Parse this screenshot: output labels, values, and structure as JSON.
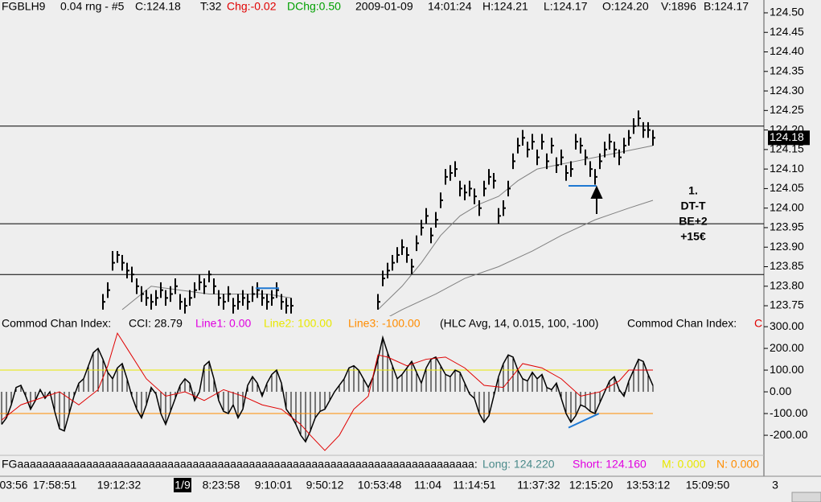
{
  "header": [
    {
      "text": "FGBLH9",
      "color": "#000000"
    },
    {
      "text": "0.04 rng - #5",
      "color": "#000000"
    },
    {
      "text": "C:124.18",
      "color": "#000000"
    },
    {
      "text": "T:32",
      "color": "#000000"
    },
    {
      "text": "Chg:-0.02",
      "color": "#e00000"
    },
    {
      "text": "DChg:0.50",
      "color": "#00a000"
    },
    {
      "text": "2009-01-09",
      "color": "#000000"
    },
    {
      "text": "14:01:24",
      "color": "#000000"
    },
    {
      "text": "H:124.21",
      "color": "#000000"
    },
    {
      "text": "L:124.17",
      "color": "#000000"
    },
    {
      "text": "O:124.20",
      "color": "#000000"
    },
    {
      "text": "V:1896",
      "color": "#000000"
    },
    {
      "text": "B:124.17",
      "color": "#000000"
    }
  ],
  "chart_data": [
    {
      "type": "hlc",
      "color": "#000000",
      "high": [
        null,
        null,
        null,
        null,
        null,
        null,
        null,
        null,
        null,
        null,
        null,
        null,
        null,
        null,
        null,
        null,
        null,
        null,
        null,
        null,
        null,
        123.78,
        123.81,
        123.89,
        123.89,
        123.88,
        123.86,
        123.85,
        123.82,
        123.8,
        123.79,
        123.78,
        123.79,
        123.81,
        123.79,
        123.8,
        123.82,
        123.78,
        123.77,
        123.79,
        123.81,
        123.83,
        123.82,
        123.84,
        123.82,
        123.79,
        123.78,
        123.8,
        123.77,
        123.78,
        123.79,
        123.78,
        123.8,
        123.81,
        123.79,
        123.78,
        123.79,
        123.81,
        123.78,
        123.77,
        123.77,
        null,
        null,
        null,
        null,
        null,
        null,
        null,
        null,
        null,
        null,
        null,
        null,
        null,
        null,
        null,
        null,
        null,
        123.78,
        123.84,
        123.86,
        123.88,
        123.9,
        123.92,
        123.9,
        123.87,
        123.93,
        123.97,
        124.0,
        123.95,
        123.99,
        124.04,
        124.1,
        124.11,
        124.12,
        124.07,
        124.06,
        124.07,
        124.05,
        124.02,
        124.07,
        124.1,
        124.09,
        124.0,
        124.02,
        124.07,
        124.14,
        124.18,
        124.2,
        124.17,
        124.19,
        124.15,
        124.19,
        124.14,
        124.18,
        124.13,
        124.15,
        124.11,
        124.12,
        124.19,
        124.18,
        124.15,
        124.12,
        124.1,
        124.14,
        124.17,
        124.19,
        124.17,
        124.15,
        124.18,
        124.2,
        124.23,
        124.25,
        124.22,
        124.22,
        124.2
      ],
      "low": [
        null,
        null,
        null,
        null,
        null,
        null,
        null,
        null,
        null,
        null,
        null,
        null,
        null,
        null,
        null,
        null,
        null,
        null,
        null,
        null,
        null,
        123.74,
        123.77,
        123.84,
        123.86,
        123.84,
        123.82,
        123.81,
        123.78,
        123.76,
        123.75,
        123.74,
        123.75,
        123.77,
        123.75,
        123.76,
        123.78,
        123.74,
        123.73,
        123.75,
        123.77,
        123.79,
        123.78,
        123.81,
        123.78,
        123.75,
        123.74,
        123.76,
        123.73,
        123.74,
        123.75,
        123.74,
        123.76,
        123.77,
        123.75,
        123.74,
        123.75,
        123.77,
        123.74,
        123.73,
        123.73,
        null,
        null,
        null,
        null,
        null,
        null,
        null,
        null,
        null,
        null,
        null,
        null,
        null,
        null,
        null,
        null,
        null,
        123.74,
        123.8,
        123.82,
        123.84,
        123.86,
        123.88,
        123.86,
        123.83,
        123.89,
        123.93,
        123.96,
        123.91,
        123.95,
        124.0,
        124.06,
        124.07,
        124.08,
        124.03,
        124.02,
        124.03,
        124.01,
        123.98,
        124.03,
        124.06,
        124.05,
        123.96,
        123.98,
        124.03,
        124.1,
        124.14,
        124.16,
        124.13,
        124.15,
        124.11,
        124.15,
        124.1,
        124.14,
        124.09,
        124.11,
        124.07,
        124.08,
        124.15,
        124.14,
        124.11,
        124.08,
        124.06,
        124.1,
        124.13,
        124.15,
        124.13,
        124.11,
        124.14,
        124.16,
        124.19,
        124.21,
        124.18,
        124.18,
        124.16
      ],
      "close": [
        null,
        null,
        null,
        null,
        null,
        null,
        null,
        null,
        null,
        null,
        null,
        null,
        null,
        null,
        null,
        null,
        null,
        null,
        null,
        null,
        null,
        123.76,
        123.79,
        123.86,
        123.88,
        123.86,
        123.84,
        123.83,
        123.8,
        123.78,
        123.77,
        123.76,
        123.77,
        123.79,
        123.77,
        123.78,
        123.8,
        123.76,
        123.75,
        123.77,
        123.79,
        123.81,
        123.8,
        123.83,
        123.8,
        123.77,
        123.76,
        123.78,
        123.75,
        123.76,
        123.77,
        123.76,
        123.78,
        123.79,
        123.77,
        123.76,
        123.77,
        123.79,
        123.76,
        123.75,
        123.75,
        null,
        null,
        null,
        null,
        null,
        null,
        null,
        null,
        null,
        null,
        null,
        null,
        null,
        null,
        null,
        null,
        null,
        123.76,
        123.82,
        123.84,
        123.86,
        123.88,
        123.9,
        123.88,
        123.85,
        123.91,
        123.95,
        123.98,
        123.93,
        123.97,
        124.02,
        124.08,
        124.09,
        124.1,
        124.05,
        124.04,
        124.05,
        124.03,
        124.0,
        124.05,
        124.08,
        124.07,
        123.98,
        124.0,
        124.05,
        124.12,
        124.16,
        124.18,
        124.15,
        124.17,
        124.13,
        124.17,
        124.12,
        124.16,
        124.11,
        124.13,
        124.09,
        124.1,
        124.17,
        124.16,
        124.13,
        124.1,
        124.08,
        124.12,
        124.15,
        124.17,
        124.15,
        124.13,
        124.16,
        124.18,
        124.21,
        124.23,
        124.2,
        124.2,
        124.18
      ],
      "moving_averages": [
        {
          "color": "#808080",
          "x": [
            25,
            31,
            37,
            43,
            49,
            55,
            60,
            69,
            78,
            83,
            87,
            91,
            95,
            99,
            103,
            107,
            111,
            115,
            119,
            123,
            127,
            131,
            135
          ],
          "values": [
            123.74,
            123.8,
            123.79,
            123.78,
            123.78,
            123.78,
            123.77,
            null,
            123.74,
            123.8,
            123.86,
            123.93,
            123.98,
            124.01,
            124.03,
            124.07,
            124.1,
            124.11,
            124.12,
            124.13,
            124.14,
            124.15,
            124.16
          ]
        },
        {
          "color": "#808080",
          "x": [
            80,
            83,
            90,
            96,
            103,
            110,
            116,
            123,
            130,
            135
          ],
          "values": [
            123.72,
            123.74,
            123.78,
            123.82,
            123.85,
            123.89,
            123.93,
            123.97,
            124.0,
            124.02
          ]
        }
      ],
      "hlines": [
        124.21,
        123.96,
        123.83
      ],
      "drawings": [
        {
          "color": "#1e78d2",
          "x": [
            52.7,
            57.5
          ],
          "values": [
            123.795,
            123.795
          ]
        },
        {
          "color": "#1e78d2",
          "x": [
            117.5,
            123.3
          ],
          "values": [
            124.057,
            124.057
          ]
        }
      ],
      "last_price": {
        "value": 124.18,
        "label": "124.18"
      },
      "annotation": [
        "1.",
        "DT-T",
        "BE+2",
        "+15€"
      ],
      "ylim": [
        123.74,
        124.53
      ],
      "yticks": [
        {
          "value": 124.5,
          "label": "124.50"
        },
        {
          "value": 124.45,
          "label": "124.45"
        },
        {
          "value": 124.4,
          "label": "124.40"
        },
        {
          "value": 124.35,
          "label": "124.35"
        },
        {
          "value": 124.3,
          "label": "124.30"
        },
        {
          "value": 124.25,
          "label": "124.25"
        },
        {
          "value": 124.2,
          "label": "124.20"
        },
        {
          "value": 124.15,
          "label": "124.15"
        },
        {
          "value": 124.1,
          "label": "124.10"
        },
        {
          "value": 124.05,
          "label": "124.05"
        },
        {
          "value": 124.0,
          "label": "124.00"
        },
        {
          "value": 123.95,
          "label": "123.95"
        },
        {
          "value": 123.9,
          "label": "123.90"
        },
        {
          "value": 123.85,
          "label": "123.85"
        },
        {
          "value": 123.8,
          "label": "123.80"
        },
        {
          "value": 123.75,
          "label": "123.75"
        }
      ]
    },
    {
      "type": "cci",
      "legend": [
        {
          "text": "Commod Chan Index:",
          "color": "#000000"
        },
        {
          "text": "CCI: 28.79",
          "color": "#000000"
        },
        {
          "text": "Line1: 0.00",
          "color": "#e000e0"
        },
        {
          "text": "Line2: 100.00",
          "color": "#e8e800"
        },
        {
          "text": "Line3: -100.00",
          "color": "#ff8c00"
        },
        {
          "text": "(HLC Avg, 14, 0.015, 100, -100)",
          "color": "#000000"
        },
        {
          "text": "Commod Chan Index:",
          "color": "#000000"
        },
        {
          "text": "C",
          "color": "#e00000"
        }
      ],
      "color": "#000000",
      "values": [
        -150,
        -120,
        -60,
        20,
        30,
        -20,
        -80,
        -40,
        10,
        -30,
        0,
        -90,
        -170,
        -180,
        -100,
        -20,
        40,
        60,
        120,
        180,
        200,
        150,
        90,
        60,
        110,
        130,
        60,
        -20,
        -80,
        -120,
        -60,
        20,
        -10,
        -100,
        -150,
        -90,
        -30,
        30,
        60,
        40,
        -40,
        0,
        120,
        140,
        60,
        -40,
        -90,
        -100,
        -60,
        -120,
        -80,
        30,
        70,
        40,
        -20,
        40,
        80,
        100,
        40,
        -80,
        -110,
        -150,
        -200,
        -230,
        -180,
        -120,
        -90,
        -80,
        -40,
        0,
        30,
        60,
        110,
        120,
        100,
        60,
        20,
        70,
        150,
        250,
        180,
        120,
        60,
        80,
        110,
        140,
        90,
        40,
        110,
        150,
        160,
        120,
        80,
        70,
        100,
        90,
        40,
        -10,
        -30,
        -100,
        -140,
        -110,
        -20,
        70,
        130,
        170,
        160,
        100,
        60,
        50,
        90,
        60,
        80,
        20,
        10,
        40,
        -30,
        -100,
        -140,
        -110,
        -60,
        -70,
        -90,
        -100,
        -50,
        0,
        50,
        70,
        10,
        -20,
        50,
        100,
        150,
        140,
        80,
        28.79
      ],
      "signal": {
        "color": "#e00000",
        "x": [
          0,
          4,
          8,
          12,
          16,
          20,
          22,
          24,
          26,
          30,
          34,
          38,
          42,
          46,
          50,
          54,
          58,
          62,
          64,
          67,
          70,
          73,
          76,
          78,
          80,
          84,
          88,
          92,
          96,
          100,
          104,
          108,
          112,
          116,
          120,
          124,
          128,
          130,
          133,
          135
        ],
        "values": [
          -130,
          -60,
          -30,
          0,
          -60,
          10,
          120,
          270,
          200,
          60,
          -20,
          0,
          -40,
          10,
          -20,
          -60,
          -80,
          -150,
          -200,
          -270,
          -200,
          -80,
          -20,
          170,
          160,
          120,
          150,
          160,
          110,
          30,
          20,
          130,
          110,
          60,
          -20,
          0,
          50,
          100,
          100,
          100
        ]
      },
      "levels": [
        {
          "value": 100,
          "color": "#e8e800"
        },
        {
          "value": -100,
          "color": "#ff8c00"
        }
      ],
      "drawings": [
        {
          "color": "#1e78d2",
          "x": [
            117.5,
            123.8
          ],
          "values": [
            -165,
            -100
          ]
        }
      ],
      "ylim": [
        -285,
        341
      ],
      "yticks": [
        {
          "value": 300,
          "label": "300.00"
        },
        {
          "value": 200,
          "label": "200.00"
        },
        {
          "value": 100,
          "label": "100.00"
        },
        {
          "value": 0,
          "label": "0.00"
        },
        {
          "value": -100,
          "label": "-100.00"
        },
        {
          "value": -200,
          "label": "-200.00"
        }
      ]
    }
  ],
  "footer": [
    {
      "text": "FGaaaaaaaaaaaaaaaaaaaaaaaaaaaaaaaaaaaaaaaaaaaaaaaaaaaaaaaaaaaaaaaaaaaaaaaaa:",
      "color": "#000000"
    },
    {
      "text": "Long: 124.220",
      "color": "#4a8a8a"
    },
    {
      "text": "Short: 124.160",
      "color": "#e000e0"
    },
    {
      "text": "M: 0.000",
      "color": "#e8e800"
    },
    {
      "text": "N: 0.000",
      "color": "#ff8c00"
    }
  ],
  "x_labels": [
    "03:56",
    "17:58:51",
    "19:12:32",
    "1/9",
    "8:23:58",
    "9:10:01",
    "9:50:12",
    "10:53:48",
    "11:04",
    "11:14:51",
    "11:37:32",
    "12:15:20",
    "13:53:12",
    "15:09:50",
    "3"
  ]
}
